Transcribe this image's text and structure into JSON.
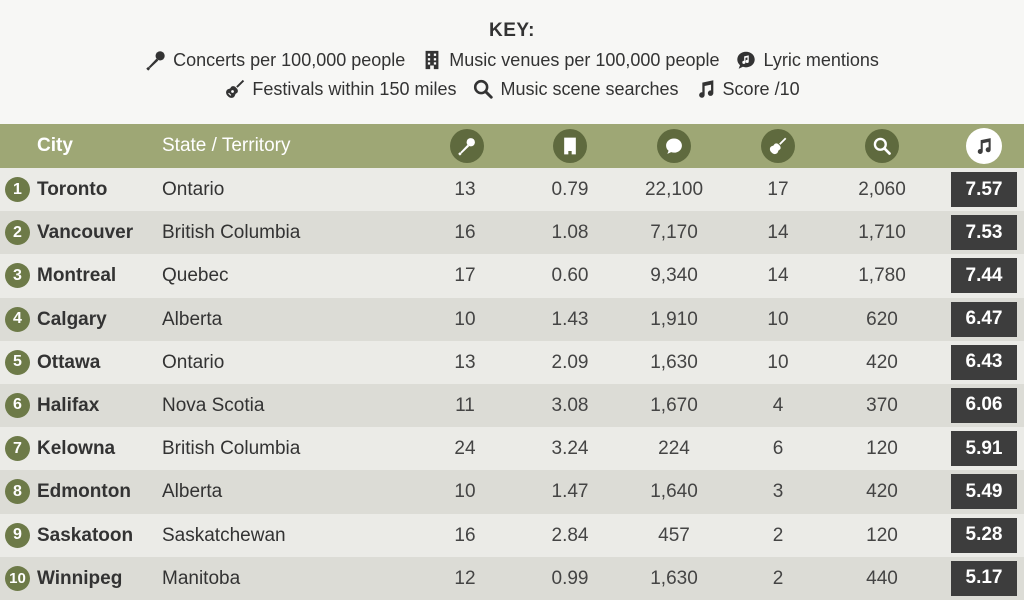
{
  "key": {
    "title": "KEY:",
    "items": [
      {
        "icon": "microphone-icon",
        "label": "Concerts per 100,000 people"
      },
      {
        "icon": "building-icon",
        "label": "Music venues per 100,000 people"
      },
      {
        "icon": "speech-bubble-music-icon",
        "label": "Lyric mentions"
      },
      {
        "icon": "guitar-icon",
        "label": "Festivals within 150 miles"
      },
      {
        "icon": "search-icon",
        "label": "Music scene searches"
      },
      {
        "icon": "music-note-icon",
        "label": "Score /10"
      }
    ]
  },
  "colors": {
    "header_bg": "#9ea775",
    "icon_circle": "#5f6a3e",
    "rank_circle": "#6d7a48",
    "row_light": "#ebebe7",
    "row_dark": "#dcdcd6",
    "score_bg": "#3d3d3d"
  },
  "table": {
    "headers": {
      "city": "City",
      "state": "State / Territory"
    },
    "rows": [
      {
        "rank": "1",
        "city": "Toronto",
        "state": "Ontario",
        "concerts": "13",
        "venues": "0.79",
        "lyrics": "22,100",
        "festivals": "17",
        "searches": "2,060",
        "score": "7.57"
      },
      {
        "rank": "2",
        "city": "Vancouver",
        "state": "British Columbia",
        "concerts": "16",
        "venues": "1.08",
        "lyrics": "7,170",
        "festivals": "14",
        "searches": "1,710",
        "score": "7.53"
      },
      {
        "rank": "3",
        "city": "Montreal",
        "state": "Quebec",
        "concerts": "17",
        "venues": "0.60",
        "lyrics": "9,340",
        "festivals": "14",
        "searches": "1,780",
        "score": "7.44"
      },
      {
        "rank": "4",
        "city": "Calgary",
        "state": "Alberta",
        "concerts": "10",
        "venues": "1.43",
        "lyrics": "1,910",
        "festivals": "10",
        "searches": "620",
        "score": "6.47"
      },
      {
        "rank": "5",
        "city": "Ottawa",
        "state": "Ontario",
        "concerts": "13",
        "venues": "2.09",
        "lyrics": "1,630",
        "festivals": "10",
        "searches": "420",
        "score": "6.43"
      },
      {
        "rank": "6",
        "city": "Halifax",
        "state": "Nova Scotia",
        "concerts": "11",
        "venues": "3.08",
        "lyrics": "1,670",
        "festivals": "4",
        "searches": "370",
        "score": "6.06"
      },
      {
        "rank": "7",
        "city": "Kelowna",
        "state": "British Columbia",
        "concerts": "24",
        "venues": "3.24",
        "lyrics": "224",
        "festivals": "6",
        "searches": "120",
        "score": "5.91"
      },
      {
        "rank": "8",
        "city": "Edmonton",
        "state": "Alberta",
        "concerts": "10",
        "venues": "1.47",
        "lyrics": "1,640",
        "festivals": "3",
        "searches": "420",
        "score": "5.49"
      },
      {
        "rank": "9",
        "city": "Saskatoon",
        "state": "Saskatchewan",
        "concerts": "16",
        "venues": "2.84",
        "lyrics": "457",
        "festivals": "2",
        "searches": "120",
        "score": "5.28"
      },
      {
        "rank": "10",
        "city": "Winnipeg",
        "state": "Manitoba",
        "concerts": "12",
        "venues": "0.99",
        "lyrics": "1,630",
        "festivals": "2",
        "searches": "440",
        "score": "5.17"
      }
    ]
  }
}
